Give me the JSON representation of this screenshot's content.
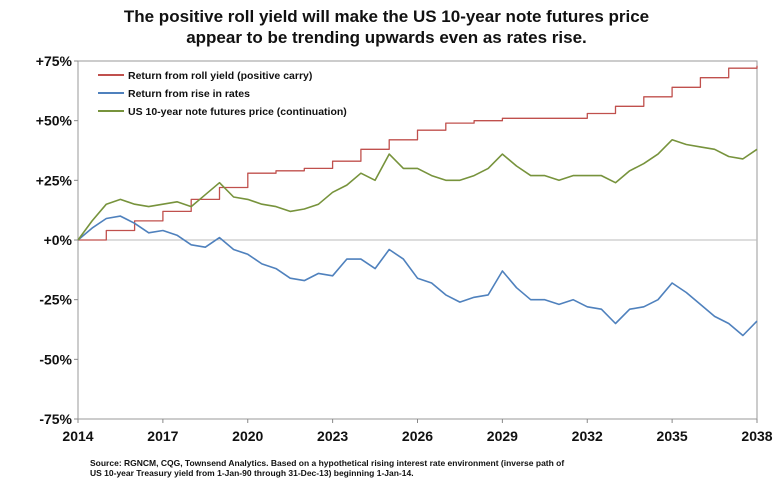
{
  "chart_data": {
    "type": "line",
    "title_lines": [
      "The positive roll yield will make the US 10-year note futures price",
      "appear to be trending upwards even as rates rise."
    ],
    "xlabel": "",
    "ylabel": "",
    "xlim": [
      2014,
      2038
    ],
    "ylim": [
      -75,
      75
    ],
    "x_ticks": [
      2014,
      2017,
      2020,
      2023,
      2026,
      2029,
      2032,
      2035,
      2038
    ],
    "x_tick_labels": [
      "2014",
      "2017",
      "2020",
      "2023",
      "2026",
      "2029",
      "2032",
      "2035",
      "2038"
    ],
    "y_ticks": [
      75,
      50,
      25,
      0,
      -25,
      -50,
      -75
    ],
    "y_tick_labels": [
      "+75%",
      "+50%",
      "+25%",
      "+0%",
      "-25%",
      "-50%",
      "-75%"
    ],
    "grid": false,
    "legend_position": "top-left",
    "series": [
      {
        "name": "Return from roll yield (positive carry)",
        "color": "#c0504d",
        "x": [
          2014,
          2015,
          2016,
          2017,
          2018,
          2019,
          2020,
          2021,
          2022,
          2023,
          2024,
          2025,
          2026,
          2027,
          2028,
          2029,
          2030,
          2031,
          2032,
          2033,
          2034,
          2035,
          2036,
          2037,
          2038
        ],
        "y": [
          0,
          4,
          8,
          12,
          17,
          22,
          28,
          29,
          30,
          33,
          38,
          42,
          46,
          49,
          50,
          51,
          51,
          51,
          53,
          56,
          60,
          64,
          68,
          72,
          73
        ]
      },
      {
        "name": "Return from rise in rates",
        "color": "#4f81bd",
        "x": [
          2014,
          2014.5,
          2015,
          2015.5,
          2016,
          2016.5,
          2017,
          2017.5,
          2018,
          2018.5,
          2019,
          2019.5,
          2020,
          2020.5,
          2021,
          2021.5,
          2022,
          2022.5,
          2023,
          2023.5,
          2024,
          2024.5,
          2025,
          2025.5,
          2026,
          2026.5,
          2027,
          2027.5,
          2028,
          2028.5,
          2029,
          2029.5,
          2030,
          2030.5,
          2031,
          2031.5,
          2032,
          2032.5,
          2033,
          2033.5,
          2034,
          2034.5,
          2035,
          2035.5,
          2036,
          2036.5,
          2037,
          2037.5,
          2038
        ],
        "y": [
          0,
          5,
          9,
          10,
          7,
          3,
          4,
          2,
          -2,
          -3,
          1,
          -4,
          -6,
          -10,
          -12,
          -16,
          -17,
          -14,
          -15,
          -8,
          -8,
          -12,
          -4,
          -8,
          -16,
          -18,
          -23,
          -26,
          -24,
          -23,
          -13,
          -20,
          -25,
          -25,
          -27,
          -25,
          -28,
          -29,
          -35,
          -29,
          -28,
          -25,
          -18,
          -22,
          -27,
          -32,
          -35,
          -40,
          -34
        ]
      },
      {
        "name": "US 10-year note futures price (continuation)",
        "color": "#77933c",
        "x": [
          2014,
          2014.5,
          2015,
          2015.5,
          2016,
          2016.5,
          2017,
          2017.5,
          2018,
          2018.5,
          2019,
          2019.5,
          2020,
          2020.5,
          2021,
          2021.5,
          2022,
          2022.5,
          2023,
          2023.5,
          2024,
          2024.5,
          2025,
          2025.5,
          2026,
          2026.5,
          2027,
          2027.5,
          2028,
          2028.5,
          2029,
          2029.5,
          2030,
          2030.5,
          2031,
          2031.5,
          2032,
          2032.5,
          2033,
          2033.5,
          2034,
          2034.5,
          2035,
          2035.5,
          2036,
          2036.5,
          2037,
          2037.5,
          2038
        ],
        "y": [
          0,
          8,
          15,
          17,
          15,
          14,
          15,
          16,
          14,
          19,
          24,
          18,
          17,
          15,
          14,
          12,
          13,
          15,
          20,
          23,
          28,
          25,
          36,
          30,
          30,
          27,
          25,
          25,
          27,
          30,
          36,
          31,
          27,
          27,
          25,
          27,
          27,
          27,
          24,
          29,
          32,
          36,
          42,
          40,
          39,
          38,
          35,
          34,
          38
        ]
      }
    ]
  },
  "source_note_lines": [
    "Source: RGNCM, CQG, Townsend Analytics. Based on a hypothetical rising interest rate environment (inverse path of",
    "US 10-year Treasury yield from 1-Jan-90 through 31-Dec-13) beginning 1-Jan-14."
  ]
}
